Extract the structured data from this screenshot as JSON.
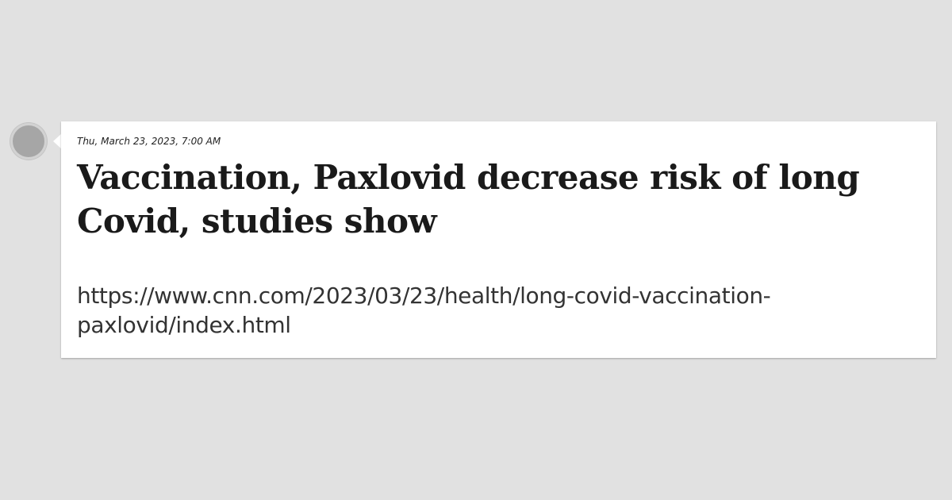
{
  "post": {
    "date": "Thu, March 23, 2023, 7:00 AM",
    "title": "Vaccination, Paxlovid decrease risk of long Covid, studies show",
    "url_line1": "https://www.cnn.com/2023/03/23/health/long-covid-vaccination-",
    "url_line2": "paxlovid/index.html"
  },
  "colors": {
    "page_background": "#e1e1e1",
    "card_background": "#ffffff",
    "timeline_dot": "#a6a6a6"
  }
}
